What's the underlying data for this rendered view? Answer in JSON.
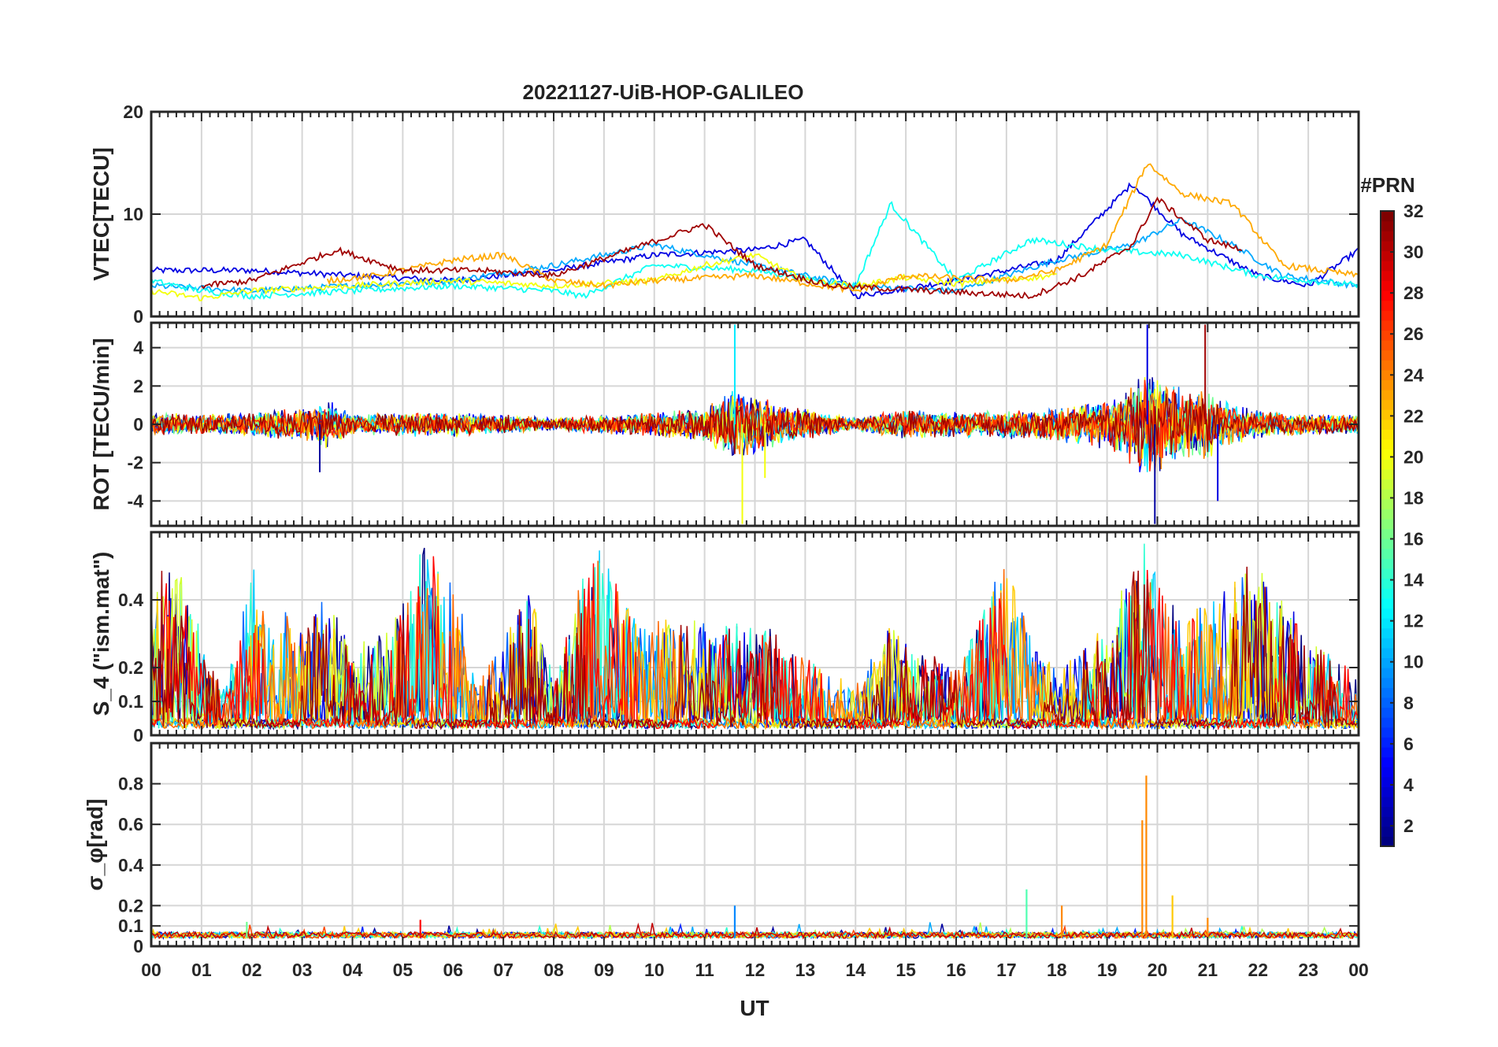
{
  "chart_data": {
    "type": "line",
    "title": "20221127-UiB-HOP-GALILEO",
    "xlabel": "UT",
    "x_ticks": [
      "00",
      "01",
      "02",
      "03",
      "04",
      "05",
      "06",
      "07",
      "08",
      "09",
      "10",
      "11",
      "12",
      "13",
      "14",
      "15",
      "16",
      "17",
      "18",
      "19",
      "20",
      "21",
      "22",
      "23",
      "00"
    ],
    "xlim": [
      0,
      24
    ],
    "grid": true,
    "colormap": "jet",
    "panels": [
      {
        "ylabel": "VTEC[TECU]",
        "ylim": [
          0,
          20
        ],
        "yticks": [
          0,
          10,
          20
        ],
        "series": [
          {
            "prn": 4,
            "x": [
              0,
              2,
              4,
              6,
              8,
              10,
              12,
              13,
              14,
              16,
              18,
              19.5,
              20.5,
              22,
              23,
              24
            ],
            "y": [
              4.5,
              4.5,
              4.0,
              3.5,
              4.5,
              6.0,
              6.5,
              7.5,
              2.0,
              3.5,
              5.5,
              13.0,
              8.0,
              4.0,
              3.0,
              6.5
            ]
          },
          {
            "prn": 10,
            "x": [
              0,
              2,
              4,
              6,
              8,
              10,
              12,
              14,
              16,
              18,
              19.5,
              20.5,
              21.5,
              22.5,
              24
            ],
            "y": [
              3.0,
              2.5,
              3.0,
              3.5,
              5.0,
              7.0,
              5.0,
              3.0,
              2.5,
              5.5,
              7.0,
              9.5,
              7.0,
              4.0,
              3.0
            ]
          },
          {
            "prn": 13,
            "x": [
              0,
              1,
              2,
              4,
              6,
              8,
              8.6,
              10,
              12,
              14,
              14.7,
              16,
              17.5,
              19,
              20.5,
              22,
              24
            ],
            "y": [
              3.5,
              2.5,
              2.0,
              2.5,
              3.0,
              2.5,
              2.0,
              5.0,
              4.5,
              3.0,
              11.0,
              3.5,
              7.5,
              6.5,
              6.0,
              4.0,
              3.0
            ]
          },
          {
            "prn": 20,
            "x": [
              0,
              1,
              2,
              4,
              6,
              8,
              10,
              11,
              12,
              13,
              14,
              15,
              16,
              18
            ],
            "y": [
              2.5,
              1.8,
              2.5,
              3.0,
              3.5,
              3.0,
              3.5,
              5.0,
              6.0,
              3.5,
              3.0,
              3.8,
              3.2,
              4.0
            ]
          },
          {
            "prn": 23,
            "x": [
              3.5,
              4.5,
              6,
              7,
              8,
              9,
              10,
              12,
              14,
              15,
              17,
              18,
              19,
              19.8,
              20.5,
              21.5,
              22.5,
              24
            ],
            "y": [
              3.5,
              4.0,
              5.5,
              6.0,
              3.5,
              3.0,
              3.5,
              4.0,
              2.5,
              4.0,
              3.5,
              4.5,
              7.0,
              15.0,
              12.0,
              11.0,
              5.0,
              4.0
            ]
          },
          {
            "prn": 31,
            "x": [
              1,
              2,
              3.7,
              5,
              6.5,
              8,
              11,
              12,
              13.5,
              17.5,
              18.5,
              19.5,
              20,
              21,
              21.7
            ],
            "y": [
              3.0,
              3.5,
              6.5,
              4.5,
              4.5,
              4.0,
              9.0,
              5.0,
              3.0,
              2.0,
              4.0,
              7.0,
              11.5,
              7.5,
              6.5
            ]
          }
        ]
      },
      {
        "ylabel": "ROT [TECU/min]",
        "ylim": [
          -5.3,
          5.3
        ],
        "yticks": [
          -4,
          -2,
          0,
          2,
          4
        ],
        "noise_envelope": {
          "x": [
            0,
            1,
            2,
            3,
            3.5,
            4,
            5,
            6,
            7,
            8,
            9,
            10,
            11,
            11.5,
            12,
            12.5,
            13,
            14,
            15,
            16,
            17,
            18,
            19,
            19.5,
            19.8,
            20,
            20.5,
            21,
            21.5,
            22,
            23,
            24
          ],
          "amplitude": [
            0.6,
            0.5,
            0.6,
            0.8,
            1.2,
            0.5,
            0.6,
            0.6,
            0.5,
            0.3,
            0.5,
            0.6,
            0.9,
            1.8,
            1.5,
            1.0,
            0.8,
            0.3,
            0.8,
            0.6,
            0.7,
            0.9,
            1.2,
            2.0,
            3.0,
            2.5,
            1.8,
            1.8,
            1.0,
            0.7,
            0.5,
            0.5
          ]
        },
        "spikes": [
          {
            "x": 11.6,
            "y": 5.2
          },
          {
            "x": 11.75,
            "y": -5.2
          },
          {
            "x": 19.8,
            "y": 5.2
          },
          {
            "x": 19.95,
            "y": -5.2
          },
          {
            "x": 20.95,
            "y": 5.2
          },
          {
            "x": 21.2,
            "y": -4.0
          },
          {
            "x": 3.35,
            "y": -2.5
          },
          {
            "x": 12.2,
            "y": -2.8
          }
        ]
      },
      {
        "ylabel": "S_4 (\"ism.mat\")",
        "ylim": [
          0,
          0.6
        ],
        "yticks": [
          0,
          0.1,
          0.2,
          0.4
        ],
        "envelope": {
          "x": [
            0,
            0.5,
            1,
            1.5,
            2,
            2.5,
            3,
            3.5,
            4,
            5,
            5.5,
            6,
            6.5,
            7,
            7.5,
            8,
            8.5,
            9,
            9.5,
            10,
            11,
            12,
            13,
            14,
            14.7,
            15,
            16,
            17,
            17.5,
            18,
            19,
            19.8,
            20.5,
            21,
            22,
            23,
            24
          ],
          "amplitude": [
            0.45,
            0.5,
            0.25,
            0.1,
            0.5,
            0.35,
            0.3,
            0.4,
            0.2,
            0.35,
            0.55,
            0.45,
            0.1,
            0.25,
            0.4,
            0.15,
            0.4,
            0.55,
            0.35,
            0.3,
            0.3,
            0.3,
            0.2,
            0.1,
            0.3,
            0.25,
            0.15,
            0.5,
            0.25,
            0.15,
            0.3,
            0.55,
            0.3,
            0.35,
            0.5,
            0.25,
            0.15
          ]
        }
      },
      {
        "ylabel": "σ_φ[rad]",
        "ylim": [
          0,
          1.0
        ],
        "yticks": [
          0,
          0.1,
          0.2,
          0.4,
          0.6,
          0.8
        ],
        "baseline": 0.04,
        "spikes": [
          {
            "x": 1.9,
            "y": 0.12
          },
          {
            "x": 5.35,
            "y": 0.13
          },
          {
            "x": 11.6,
            "y": 0.2
          },
          {
            "x": 17.4,
            "y": 0.28
          },
          {
            "x": 18.1,
            "y": 0.2
          },
          {
            "x": 19.7,
            "y": 0.62
          },
          {
            "x": 19.78,
            "y": 0.84
          },
          {
            "x": 20.3,
            "y": 0.25
          },
          {
            "x": 21.0,
            "y": 0.14
          }
        ]
      }
    ],
    "colorbar": {
      "label": "#PRN",
      "range": [
        1,
        32
      ],
      "ticks": [
        2,
        4,
        6,
        8,
        10,
        12,
        14,
        16,
        18,
        20,
        22,
        24,
        26,
        28,
        30,
        32
      ]
    }
  }
}
